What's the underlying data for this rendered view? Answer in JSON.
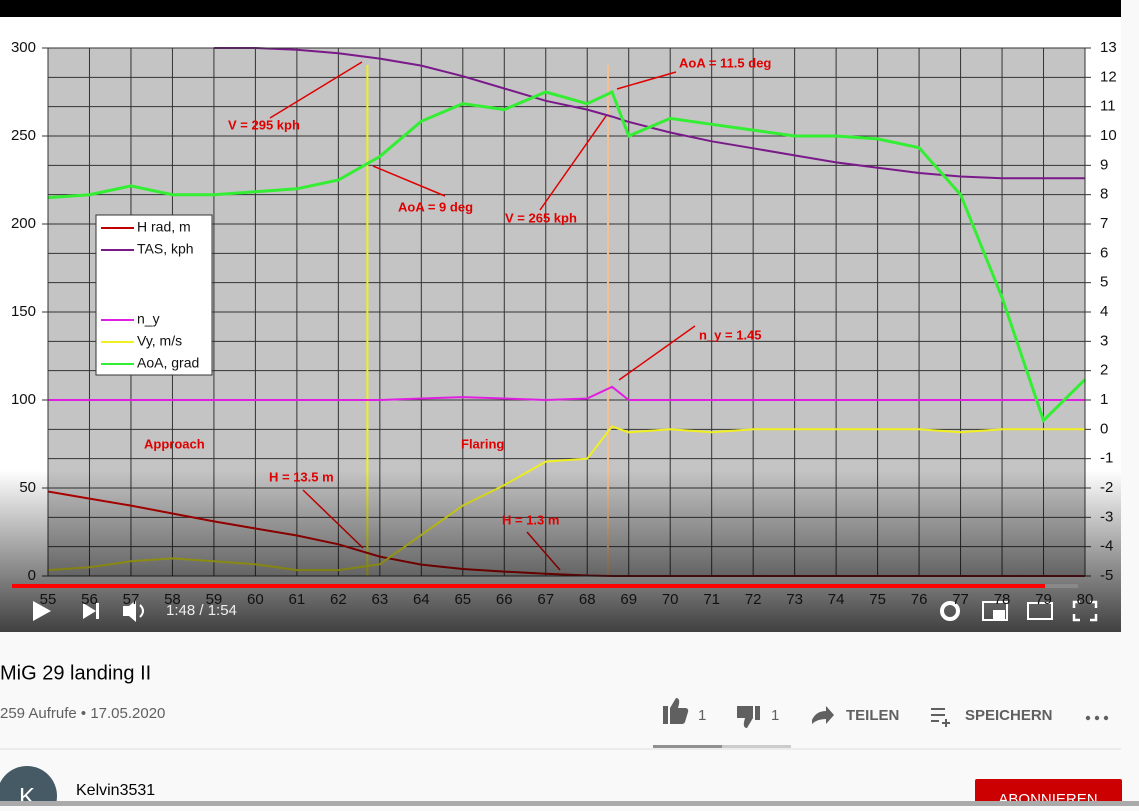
{
  "chart_data": {
    "type": "line",
    "x": [
      55,
      56,
      57,
      58,
      59,
      60,
      61,
      62,
      63,
      64,
      65,
      66,
      67,
      68,
      68.6,
      69,
      70,
      71,
      72,
      73,
      74,
      75,
      76,
      77,
      78,
      79,
      80
    ],
    "xlim": [
      55,
      80
    ],
    "xticks": [
      55,
      56,
      57,
      58,
      59,
      60,
      61,
      62,
      63,
      64,
      65,
      66,
      67,
      68,
      69,
      70,
      71,
      72,
      73,
      74,
      75,
      76,
      77,
      78,
      79,
      80
    ],
    "ylim": [
      0,
      300
    ],
    "yticks": [
      0,
      50,
      100,
      150,
      200,
      250,
      300
    ],
    "y2lim": [
      -5,
      13
    ],
    "y2ticks": [
      -5,
      -4,
      -3,
      -2,
      -1,
      0,
      1,
      2,
      3,
      4,
      5,
      6,
      7,
      8,
      9,
      10,
      11,
      12,
      13
    ],
    "grid": true,
    "series": [
      {
        "name": "H rad, m",
        "color": "#c00000",
        "values": [
          48,
          44,
          40,
          35.5,
          31,
          27,
          23,
          18,
          11,
          6.5,
          4,
          2.5,
          1.3,
          0.3,
          0,
          0,
          0,
          0,
          0,
          0,
          0,
          0,
          0,
          0,
          0,
          0,
          0
        ]
      },
      {
        "name": "TAS, kph",
        "color": "#7a1a8a",
        "values": [
          null,
          null,
          null,
          null,
          300,
          300,
          299,
          297,
          294,
          290,
          284,
          277,
          270,
          265,
          261,
          258,
          252,
          247,
          243,
          239,
          235,
          232,
          229,
          227,
          226,
          226,
          226
        ]
      },
      {
        "name": "n_y",
        "color": "#e020e0",
        "axis": "y2",
        "values": [
          1,
          1,
          1,
          1,
          1,
          1,
          1,
          1,
          1,
          1.05,
          1.1,
          1.05,
          1,
          1.05,
          1.45,
          1,
          1,
          1,
          1,
          1,
          1,
          1,
          1,
          1,
          1,
          1,
          1
        ]
      },
      {
        "name": "Vy, m/s",
        "color": "#f0f020",
        "axis": "y2",
        "values": [
          -4.8,
          -4.7,
          -4.5,
          -4.4,
          -4.5,
          -4.6,
          -4.8,
          -4.8,
          -4.6,
          -3.6,
          -2.6,
          -1.9,
          -1.1,
          -1,
          0.1,
          -0.1,
          0,
          -0.1,
          0,
          0,
          0,
          0,
          0,
          -0.1,
          0,
          0,
          0
        ]
      },
      {
        "name": "AoA, grad",
        "color": "#33ee33",
        "axis": "y2",
        "values": [
          7.9,
          8,
          8.3,
          8,
          8,
          8.1,
          8.2,
          8.5,
          9.3,
          10.5,
          11.1,
          10.9,
          11.5,
          11.1,
          11.5,
          10,
          10.6,
          10.4,
          10.2,
          10,
          10,
          9.9,
          9.6,
          8,
          4.5,
          0.3,
          1.7
        ]
      }
    ],
    "vlines": [
      {
        "value": 62.7,
        "color": "#f0f020"
      },
      {
        "value": 68.5,
        "color": "#f5c090"
      }
    ],
    "annotations": [
      "V = 295 kph",
      "AoA = 9 deg",
      "V = 265 kph",
      "AoA = 11.5 deg",
      "n_y = 1.45",
      "Approach",
      "Flaring",
      "H = 13.5 m",
      "H = 1.3 m"
    ]
  },
  "player": {
    "time": "1:48 / 1:54"
  },
  "video": {
    "title": "MiG 29 landing II",
    "meta": "259 Aufrufe • 17.05.2020"
  },
  "actions": {
    "likes": "1",
    "dislikes": "1",
    "share": "TEILEN",
    "save": "SPEICHERN"
  },
  "channel": {
    "avatar": "K",
    "name": "Kelvin3531",
    "subscribe": "ABONNIEREN"
  }
}
